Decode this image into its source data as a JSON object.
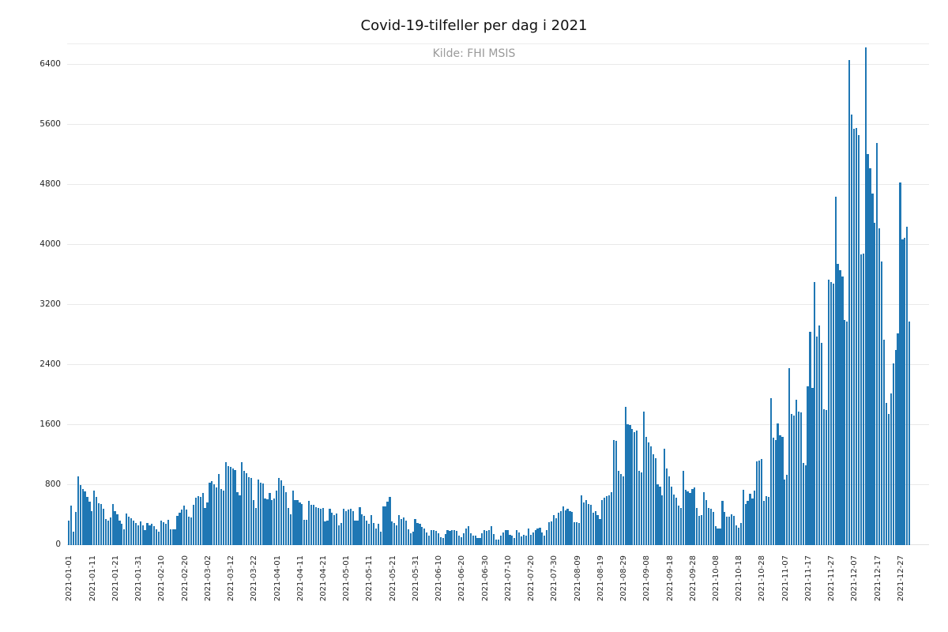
{
  "page": {
    "title": "Covid-19-tilfeller per dag i 2021",
    "subtitle": "Kilde: FHI MSIS"
  },
  "chart_data": {
    "type": "bar",
    "title": "Covid-19-tilfeller per dag i 2021",
    "subtitle": "Kilde: FHI MSIS",
    "xlabel": "",
    "ylabel": "",
    "x_start": "2021-01-01",
    "x_end": "2021-12-31",
    "ylim": [
      0,
      6680
    ],
    "yticks": [
      0,
      800,
      1600,
      2400,
      3200,
      4000,
      4800,
      5600,
      6400
    ],
    "grid": "horizontal",
    "legend": "none",
    "bar_color": "#1f77b4",
    "xtick_every_days": 10,
    "xtick_labels": [
      "2021-01-01",
      "2021-01-11",
      "2021-01-21",
      "2021-01-31",
      "2021-02-10",
      "2021-02-20",
      "2021-03-02",
      "2021-03-12",
      "2021-03-22",
      "2021-04-01",
      "2021-04-11",
      "2021-04-21",
      "2021-05-01",
      "2021-05-11",
      "2021-05-21",
      "2021-05-31",
      "2021-06-10",
      "2021-06-20",
      "2021-06-30",
      "2021-07-10",
      "2021-07-20",
      "2021-07-30",
      "2021-08-09",
      "2021-08-19",
      "2021-08-29",
      "2021-09-08",
      "2021-09-18",
      "2021-09-28",
      "2021-10-08",
      "2021-10-18",
      "2021-10-28",
      "2021-11-07",
      "2021-11-17",
      "2021-11-27",
      "2021-12-07",
      "2021-12-17",
      "2021-12-27"
    ],
    "values": [
      330,
      530,
      180,
      440,
      915,
      805,
      745,
      720,
      640,
      575,
      455,
      730,
      640,
      560,
      550,
      480,
      350,
      330,
      370,
      550,
      450,
      410,
      330,
      280,
      210,
      420,
      380,
      360,
      330,
      300,
      260,
      320,
      265,
      195,
      295,
      265,
      285,
      250,
      215,
      180,
      330,
      310,
      285,
      340,
      215,
      215,
      215,
      390,
      435,
      475,
      525,
      475,
      375,
      365,
      535,
      630,
      650,
      640,
      700,
      490,
      570,
      830,
      855,
      810,
      765,
      945,
      750,
      730,
      1105,
      1050,
      1040,
      1020,
      995,
      710,
      660,
      1110,
      985,
      960,
      910,
      900,
      605,
      490,
      870,
      835,
      820,
      625,
      615,
      695,
      595,
      625,
      725,
      890,
      865,
      785,
      710,
      490,
      410,
      730,
      595,
      595,
      570,
      550,
      340,
      340,
      585,
      540,
      535,
      510,
      490,
      480,
      495,
      315,
      330,
      485,
      435,
      400,
      425,
      260,
      295,
      485,
      450,
      470,
      485,
      450,
      330,
      330,
      505,
      415,
      385,
      330,
      280,
      400,
      295,
      225,
      280,
      175,
      520,
      520,
      575,
      645,
      315,
      295,
      260,
      400,
      350,
      365,
      330,
      210,
      155,
      175,
      350,
      295,
      280,
      245,
      220,
      170,
      130,
      195,
      195,
      185,
      160,
      110,
      95,
      145,
      200,
      185,
      205,
      195,
      185,
      130,
      110,
      160,
      220,
      255,
      160,
      130,
      130,
      95,
      95,
      160,
      200,
      185,
      205,
      255,
      145,
      75,
      75,
      125,
      170,
      195,
      195,
      135,
      125,
      90,
      200,
      165,
      115,
      135,
      125,
      220,
      135,
      165,
      200,
      220,
      235,
      165,
      125,
      200,
      305,
      315,
      395,
      360,
      430,
      455,
      515,
      465,
      480,
      455,
      440,
      305,
      305,
      300,
      660,
      570,
      605,
      550,
      535,
      430,
      455,
      395,
      350,
      605,
      630,
      650,
      665,
      710,
      1405,
      1390,
      985,
      950,
      915,
      1845,
      1615,
      1600,
      1545,
      1510,
      1530,
      985,
      965,
      1775,
      1440,
      1370,
      1315,
      1210,
      1160,
      810,
      775,
      665,
      1280,
      1020,
      915,
      775,
      675,
      630,
      525,
      500,
      985,
      740,
      720,
      700,
      745,
      765,
      490,
      385,
      405,
      710,
      595,
      500,
      480,
      440,
      250,
      220,
      220,
      585,
      445,
      375,
      375,
      410,
      385,
      265,
      235,
      290,
      735,
      550,
      585,
      685,
      620,
      725,
      1115,
      1125,
      1150,
      585,
      655,
      640,
      1955,
      1430,
      1395,
      1625,
      1465,
      1445,
      870,
      940,
      2360,
      1745,
      1730,
      1940,
      1780,
      1765,
      1095,
      1060,
      2115,
      2840,
      2095,
      3510,
      2780,
      2925,
      2695,
      1815,
      1800,
      3540,
      3510,
      3480,
      4645,
      3750,
      3665,
      3575,
      3000,
      2980,
      6460,
      5740,
      5550,
      5560,
      5460,
      3870,
      3880,
      6630,
      5210,
      5020,
      4680,
      4290,
      5360,
      4220,
      3780,
      2740,
      1900,
      1750,
      2020,
      2420,
      2600,
      2820,
      4830,
      4070,
      4090,
      4240,
      2980
    ]
  }
}
